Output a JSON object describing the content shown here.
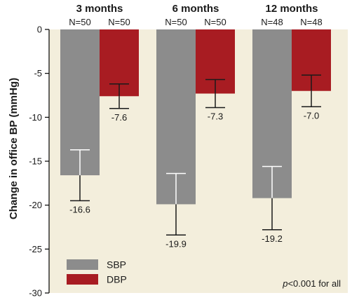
{
  "chart_data": {
    "type": "bar",
    "ylabel": "Change in office BP (mmHg)",
    "ylim": [
      -30,
      0
    ],
    "yticks": [
      0,
      -5,
      -10,
      -15,
      -20,
      -25,
      -30
    ],
    "legend_position": "bottom-left",
    "grid": false,
    "colors": {
      "SBP": "#8c8c8c",
      "DBP": "#a81c22",
      "plot_bg": "#f3eedc"
    },
    "groups": [
      {
        "title": "3 months",
        "n_labels": [
          "N=50",
          "N=50"
        ]
      },
      {
        "title": "6 months",
        "n_labels": [
          "N=50",
          "N=50"
        ]
      },
      {
        "title": "12 months",
        "n_labels": [
          "N=48",
          "N=48"
        ]
      }
    ],
    "series": [
      {
        "name": "SBP",
        "values": [
          -16.6,
          -19.9,
          -19.2
        ],
        "labels": [
          "-16.6",
          "-19.9",
          "-19.2"
        ],
        "err_low": [
          -19.5,
          -23.4,
          -22.8
        ],
        "err_high": [
          -13.7,
          -16.4,
          -15.6
        ]
      },
      {
        "name": "DBP",
        "values": [
          -7.6,
          -7.3,
          -7.0
        ],
        "labels": [
          "-7.6",
          "-7.3",
          "-7.0"
        ],
        "err_low": [
          -9.0,
          -8.9,
          -8.8
        ],
        "err_high": [
          -6.2,
          -5.7,
          -5.2
        ]
      }
    ],
    "note": {
      "italic": "p",
      "rest": "<0.001 for all"
    }
  }
}
